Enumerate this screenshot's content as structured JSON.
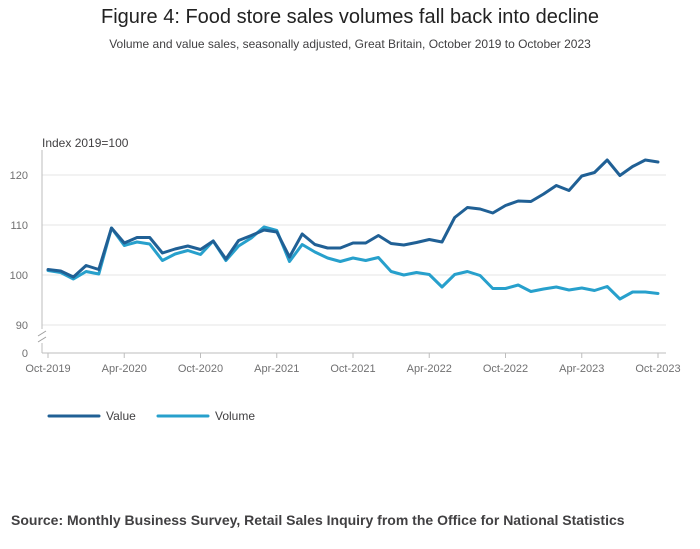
{
  "title": "Figure 4: Food store sales volumes fall back into decline",
  "subtitle": "Volume and value sales, seasonally adjusted, Great Britain, October 2019 to October 2023",
  "source": "Source: Monthly Business Survey, Retail Sales Inquiry from the Office for National Statistics",
  "chart_data": {
    "type": "line",
    "ylabel": "Index 2019=100",
    "ylim": [
      0,
      125
    ],
    "axis_break": true,
    "yticks": [
      0,
      90,
      100,
      110,
      120
    ],
    "x_tick_labels": [
      "Oct-2019",
      "Apr-2020",
      "Oct-2020",
      "Apr-2021",
      "Oct-2021",
      "Apr-2022",
      "Oct-2022",
      "Apr-2023",
      "Oct-2023"
    ],
    "x": [
      "Oct-2019",
      "Nov-2019",
      "Dec-2019",
      "Jan-2020",
      "Feb-2020",
      "Mar-2020",
      "Apr-2020",
      "May-2020",
      "Jun-2020",
      "Jul-2020",
      "Aug-2020",
      "Sep-2020",
      "Oct-2020",
      "Nov-2020",
      "Dec-2020",
      "Jan-2021",
      "Feb-2021",
      "Mar-2021",
      "Apr-2021",
      "May-2021",
      "Jun-2021",
      "Jul-2021",
      "Aug-2021",
      "Sep-2021",
      "Oct-2021",
      "Nov-2021",
      "Dec-2021",
      "Jan-2022",
      "Feb-2022",
      "Mar-2022",
      "Apr-2022",
      "May-2022",
      "Jun-2022",
      "Jul-2022",
      "Aug-2022",
      "Sep-2022",
      "Oct-2022",
      "Nov-2022",
      "Dec-2022",
      "Jan-2023",
      "Feb-2023",
      "Mar-2023",
      "Apr-2023",
      "May-2023",
      "Jun-2023",
      "Jul-2023",
      "Aug-2023",
      "Sep-2023",
      "Oct-2023"
    ],
    "grid": true,
    "legend_position": "bottom-left",
    "series": [
      {
        "name": "Value",
        "color": "#206095",
        "values": [
          101.1,
          100.8,
          99.6,
          101.9,
          101.1,
          109.4,
          106.4,
          107.5,
          107.5,
          104.4,
          105.2,
          105.8,
          105.1,
          106.8,
          103.2,
          106.9,
          107.9,
          109.0,
          108.6,
          103.6,
          108.2,
          106.1,
          105.4,
          105.4,
          106.4,
          106.4,
          107.9,
          106.3,
          106.0,
          106.5,
          107.1,
          106.6,
          111.5,
          113.5,
          113.2,
          112.4,
          113.9,
          114.8,
          114.7,
          116.2,
          117.9,
          116.9,
          119.8,
          120.5,
          123.0,
          119.9,
          121.7,
          123.0,
          122.6
        ]
      },
      {
        "name": "Volume",
        "color": "#27a0cc",
        "values": [
          100.9,
          100.5,
          99.2,
          100.7,
          100.2,
          109.4,
          105.9,
          106.6,
          106.2,
          102.9,
          104.2,
          104.9,
          104.1,
          106.8,
          102.9,
          105.8,
          107.4,
          109.6,
          108.9,
          102.7,
          106.1,
          104.6,
          103.4,
          102.7,
          103.4,
          102.9,
          103.5,
          100.7,
          100.0,
          100.5,
          100.1,
          97.6,
          100.1,
          100.7,
          99.9,
          97.3,
          97.3,
          98.0,
          96.7,
          97.2,
          97.6,
          97.0,
          97.4,
          96.9,
          97.7,
          95.2,
          96.6,
          96.6,
          96.3
        ]
      }
    ]
  }
}
